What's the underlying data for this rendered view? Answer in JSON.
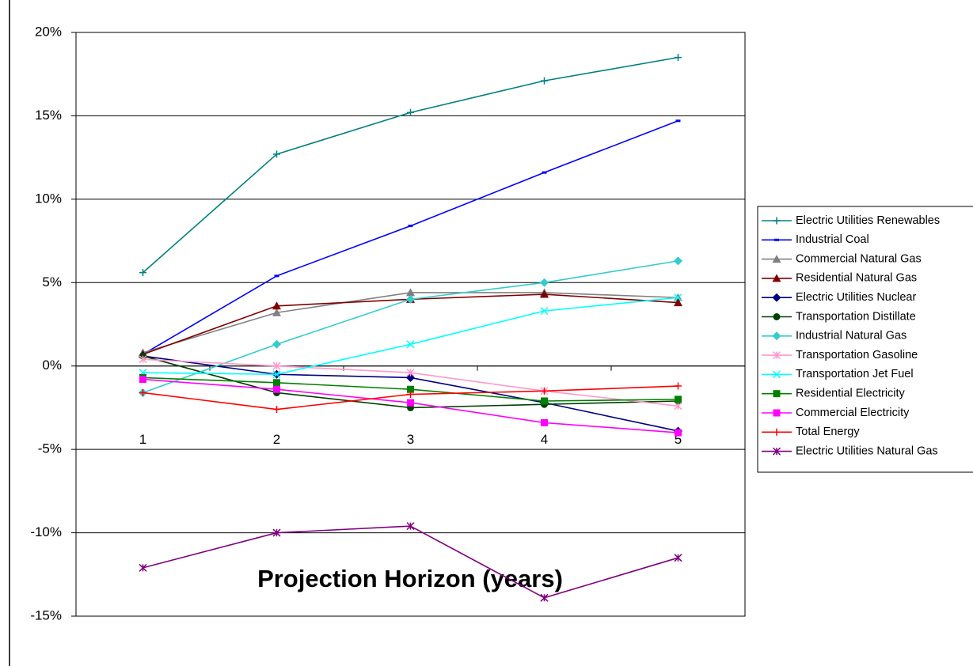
{
  "chart_data": {
    "type": "line",
    "x_label": "Projection Horizon (years)",
    "categories": [
      "1",
      "2",
      "3",
      "4",
      "5"
    ],
    "ylim": [
      -15,
      20
    ],
    "yticks": [
      {
        "value": -15,
        "label": "-15%"
      },
      {
        "value": -10,
        "label": "-10%"
      },
      {
        "value": -5,
        "label": "-5%"
      },
      {
        "value": 0,
        "label": "0%"
      },
      {
        "value": 5,
        "label": "5%"
      },
      {
        "value": 10,
        "label": "10%"
      },
      {
        "value": 15,
        "label": "15%"
      },
      {
        "value": 20,
        "label": "20%"
      }
    ],
    "grid": true,
    "legend": "right",
    "series": [
      {
        "name": "Electric Utilities Renewables",
        "color": "#008080",
        "marker": "plus",
        "values": [
          5.6,
          12.7,
          15.2,
          17.1,
          18.5
        ]
      },
      {
        "name": "Industrial Coal",
        "color": "#0000ff",
        "marker": "dash",
        "values": [
          0.7,
          5.4,
          8.4,
          11.6,
          14.7
        ]
      },
      {
        "name": "Commercial Natural Gas",
        "color": "#808080",
        "marker": "triangle",
        "values": [
          0.8,
          3.2,
          4.4,
          4.4,
          4.1
        ]
      },
      {
        "name": "Residential Natural Gas",
        "color": "#800000",
        "marker": "triangle",
        "values": [
          0.7,
          3.6,
          4.0,
          4.3,
          3.8
        ]
      },
      {
        "name": "Electric Utilities Nuclear",
        "color": "#000080",
        "marker": "diamond",
        "values": [
          0.6,
          -0.5,
          -0.7,
          -2.2,
          -3.9
        ]
      },
      {
        "name": "Transportation Distillate",
        "color": "#004000",
        "marker": "circle",
        "values": [
          0.6,
          -1.6,
          -2.5,
          -2.3,
          -2.1
        ]
      },
      {
        "name": "Industrial Natural Gas",
        "color": "#33cccc",
        "marker": "diamond",
        "values": [
          -1.6,
          1.3,
          4.0,
          5.0,
          6.3
        ]
      },
      {
        "name": "Transportation Gasoline",
        "color": "#ff99cc",
        "marker": "star",
        "values": [
          0.4,
          0.0,
          -0.4,
          -1.5,
          -2.4
        ]
      },
      {
        "name": "Transportation Jet Fuel",
        "color": "#00ffff",
        "marker": "x",
        "values": [
          -0.4,
          -0.5,
          1.3,
          3.3,
          4.1
        ]
      },
      {
        "name": "Residential Electricity",
        "color": "#008000",
        "marker": "square",
        "values": [
          -0.7,
          -1.0,
          -1.4,
          -2.1,
          -2.0
        ]
      },
      {
        "name": "Commercial Electricity",
        "color": "#ff00ff",
        "marker": "square",
        "values": [
          -0.8,
          -1.4,
          -2.2,
          -3.4,
          -4.0
        ]
      },
      {
        "name": "Total Energy",
        "color": "#ff0000",
        "marker": "plus",
        "values": [
          -1.6,
          -2.6,
          -1.7,
          -1.5,
          -1.2
        ]
      },
      {
        "name": "Electric Utilities Natural Gas",
        "color": "#800080",
        "marker": "star",
        "values": [
          -12.1,
          -10.0,
          -9.6,
          -13.9,
          -11.5
        ]
      }
    ]
  }
}
